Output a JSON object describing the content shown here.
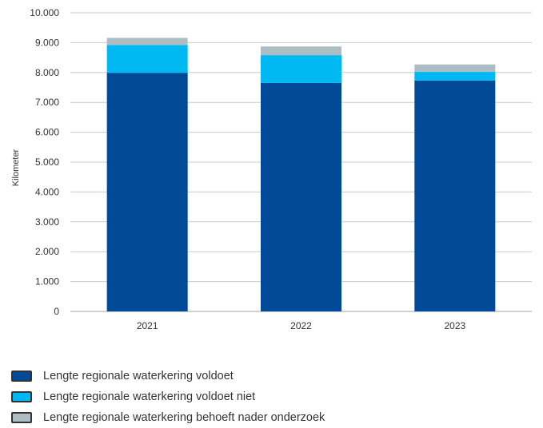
{
  "chart_data": {
    "type": "bar",
    "stacked": true,
    "categories": [
      "2021",
      "2022",
      "2023"
    ],
    "series": [
      {
        "name": "Lengte regionale waterkering voldoet",
        "values": [
          7990,
          7650,
          7730
        ],
        "color": "#004a98"
      },
      {
        "name": "Lengte regionale waterkering voldoet niet",
        "values": [
          930,
          930,
          290
        ],
        "color": "#00b9f2"
      },
      {
        "name": "Lengte regionale waterkering behoeft nader onderzoek",
        "values": [
          240,
          290,
          250
        ],
        "color": "#aebcc3"
      }
    ],
    "ylabel": "Kilometer",
    "ylim": [
      0,
      10000
    ],
    "yticks": [
      "0",
      "1.000",
      "2.000",
      "3.000",
      "4.000",
      "5.000",
      "6.000",
      "7.000",
      "8.000",
      "9.000",
      "10.000"
    ],
    "grid": true,
    "legend_position": "bottom"
  }
}
